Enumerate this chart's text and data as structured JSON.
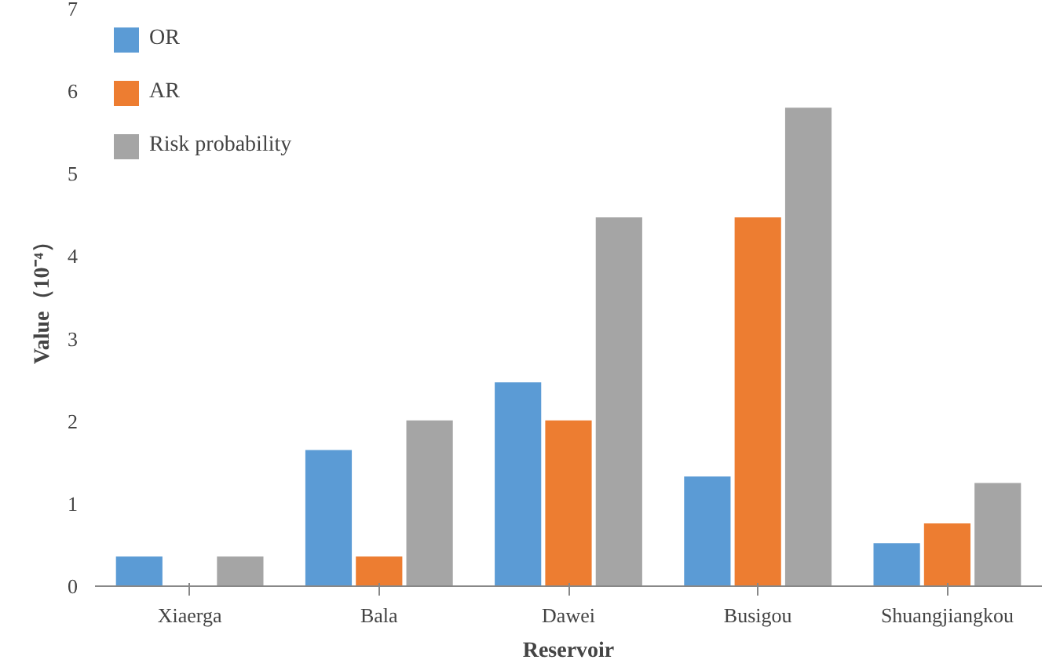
{
  "chart_data": {
    "type": "bar",
    "xlabel": "Reservoir",
    "ylabel": "Value（10⁻⁴）",
    "categories": [
      "Xiaerga",
      "Bala",
      "Dawei",
      "Busigou",
      "Shuangjiangkou"
    ],
    "series": [
      {
        "name": "OR",
        "color": "#5b9bd5",
        "values": [
          0.36,
          1.65,
          2.47,
          1.33,
          0.52
        ]
      },
      {
        "name": "AR",
        "color": "#ed7d31",
        "values": [
          null,
          0.36,
          2.01,
          4.47,
          0.76
        ]
      },
      {
        "name": "Risk probability",
        "color": "#a5a5a5",
        "values": [
          0.36,
          2.01,
          4.47,
          5.8,
          1.25
        ]
      }
    ],
    "ylim": [
      0,
      7
    ],
    "yticks": [
      0,
      1,
      2,
      3,
      4,
      5,
      6,
      7
    ],
    "grid": false,
    "legend": "top left"
  }
}
